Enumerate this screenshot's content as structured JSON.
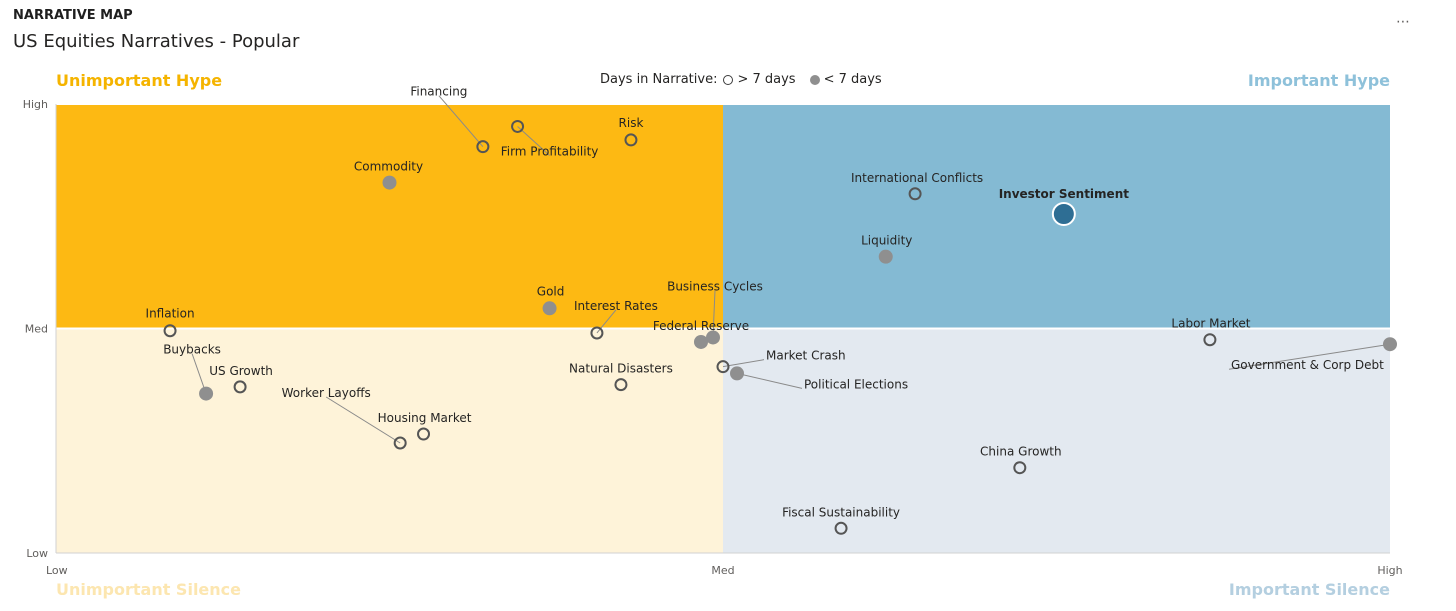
{
  "header": {
    "label": "NARRATIVE MAP",
    "title": "US Equities Narratives - Popular",
    "more_icon": "ellipsis-icon"
  },
  "legend": {
    "title": "Days in Narrative:",
    "hollow_label": "> 7 days",
    "filled_label": "< 7 days"
  },
  "chart_data": {
    "type": "scatter",
    "title": "US Equities Narratives - Popular",
    "quadrants": {
      "top_left": {
        "label": "Unimportant Hype",
        "color": "#FDB913",
        "label_color": "#F5B400"
      },
      "top_right": {
        "label": "Important Hype",
        "color": "#84BAD3",
        "label_color": "#8EC1DA"
      },
      "bottom_left": {
        "label": "Unimportant Silence",
        "color": "#FEF3D9",
        "label_color": "#FCE6B0"
      },
      "bottom_right": {
        "label": "Important Silence",
        "color": "#E3E9F0",
        "label_color": "#B4CFE0"
      }
    },
    "x_ticks": [
      "Low",
      "Med",
      "High"
    ],
    "y_ticks": [
      "Low",
      "Med",
      "High"
    ],
    "xlim": [
      0,
      2
    ],
    "ylim": [
      0,
      2
    ],
    "grid": false,
    "legend_position": "top-center",
    "highlight_color": "#2E6E94",
    "points": [
      {
        "name": "Financing",
        "x": 0.64,
        "y": 1.81,
        "filled": false
      },
      {
        "name": "Risk",
        "x": 0.862,
        "y": 1.84,
        "filled": false
      },
      {
        "name": "Firm Profitability",
        "x": 0.692,
        "y": 1.9,
        "filled": false
      },
      {
        "name": "Commodity",
        "x": 0.5,
        "y": 1.65,
        "filled": true
      },
      {
        "name": "International Conflicts",
        "x": 1.288,
        "y": 1.6,
        "filled": false
      },
      {
        "name": "Investor Sentiment",
        "x": 1.511,
        "y": 1.51,
        "filled": true,
        "highlight": true
      },
      {
        "name": "Liquidity",
        "x": 1.244,
        "y": 1.32,
        "filled": true
      },
      {
        "name": "Gold",
        "x": 0.74,
        "y": 1.09,
        "filled": true
      },
      {
        "name": "Interest Rates",
        "x": 0.811,
        "y": 0.98,
        "filled": false
      },
      {
        "name": "Business Cycles",
        "x": 0.985,
        "y": 0.96,
        "filled": true
      },
      {
        "name": "Federal Reserve",
        "x": 0.967,
        "y": 0.94,
        "filled": true
      },
      {
        "name": "Inflation",
        "x": 0.171,
        "y": 0.99,
        "filled": false
      },
      {
        "name": "Buybacks",
        "x": 0.225,
        "y": 0.71,
        "filled": true
      },
      {
        "name": "US Growth",
        "x": 0.276,
        "y": 0.74,
        "filled": false
      },
      {
        "name": "Worker Layoffs",
        "x": 0.516,
        "y": 0.49,
        "filled": false
      },
      {
        "name": "Housing Market",
        "x": 0.551,
        "y": 0.53,
        "filled": false
      },
      {
        "name": "Natural Disasters",
        "x": 0.847,
        "y": 0.75,
        "filled": false
      },
      {
        "name": "Market Crash",
        "x": 1.0,
        "y": 0.83,
        "filled": false
      },
      {
        "name": "Political Elections",
        "x": 1.021,
        "y": 0.8,
        "filled": true
      },
      {
        "name": "Labor Market",
        "x": 1.73,
        "y": 0.95,
        "filled": false
      },
      {
        "name": "Government & Corp Debt",
        "x": 2.0,
        "y": 0.93,
        "filled": true
      },
      {
        "name": "China Growth",
        "x": 1.445,
        "y": 0.38,
        "filled": false
      },
      {
        "name": "Fiscal Sustainability",
        "x": 1.177,
        "y": 0.11,
        "filled": false
      }
    ]
  }
}
